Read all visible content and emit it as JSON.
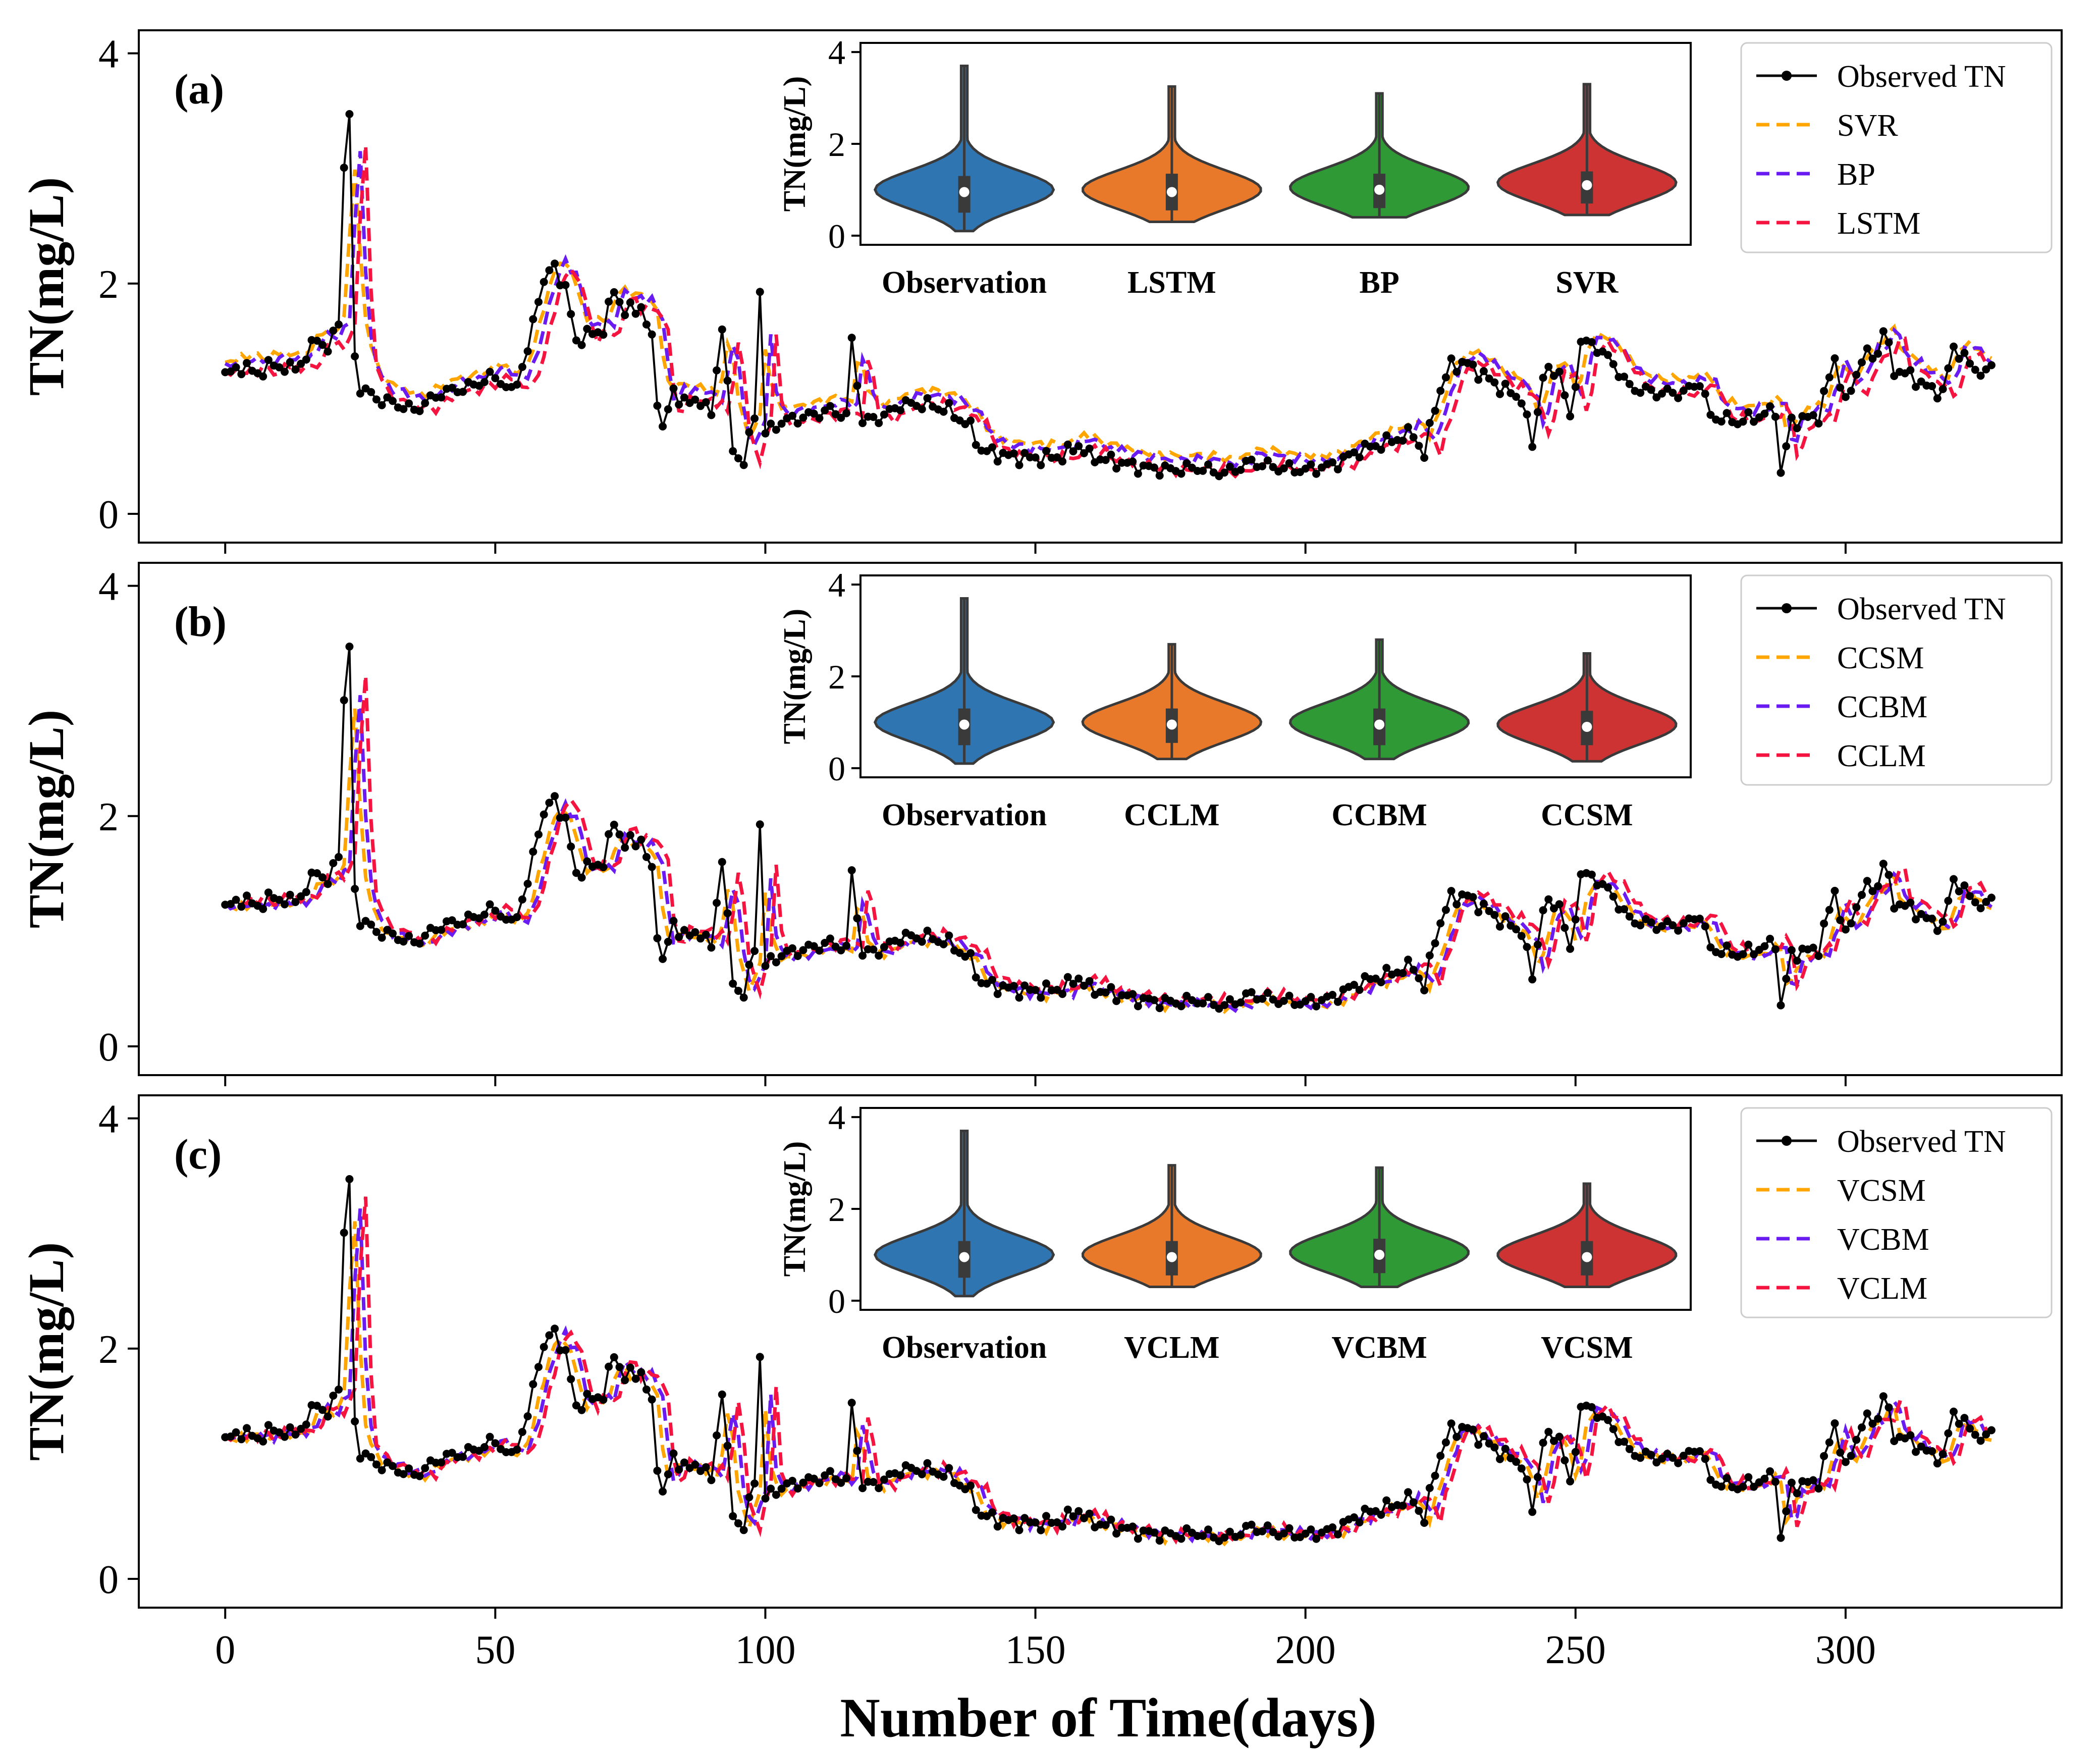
{
  "figure": {
    "xlabel": "Number of Time(days)",
    "ylabel": "TN(mg/L)",
    "xticks": [
      0,
      50,
      100,
      150,
      200,
      250,
      300
    ],
    "yticks": [
      0,
      2,
      4
    ],
    "colors": {
      "observed": "#000000",
      "orange": "#FFA500",
      "purple": "#6A1BF2",
      "red": "#F5133F",
      "violin_blue": "#2E75B1",
      "violin_orange": "#E8792A",
      "violin_green": "#2F9A35",
      "violin_red": "#CD3333"
    }
  },
  "chart_data": [
    {
      "type": "line",
      "panel_label": "(a)",
      "xlabel": "",
      "ylabel": "TN(mg/L)",
      "xlim": [
        -16,
        340
      ],
      "ylim": [
        -0.25,
        4.2
      ],
      "legend": {
        "placement": "top-right",
        "entries": [
          "Observed TN",
          "SVR",
          "BP",
          "LSTM"
        ]
      },
      "series": [
        {
          "name": "Observed TN",
          "style": "solid-with-dots",
          "color": "#000000"
        },
        {
          "name": "SVR",
          "style": "dashed",
          "color": "#FFA500",
          "bias": 0.12,
          "smooth": 0.5
        },
        {
          "name": "BP",
          "style": "dashed",
          "color": "#6A1BF2",
          "bias": 0.08,
          "smooth": 0.4
        },
        {
          "name": "LSTM",
          "style": "dashed",
          "color": "#F5133F",
          "bias": 0.0,
          "smooth": 0.3
        }
      ],
      "inset": {
        "type": "violin",
        "ylabel": "TN(mg/L)",
        "yticks": [
          0,
          2,
          4
        ],
        "ylim": [
          -0.2,
          4.2
        ],
        "categories": [
          "Observation",
          "LSTM",
          "BP",
          "SVR"
        ],
        "colors": [
          "#2E75B1",
          "#E8792A",
          "#2F9A35",
          "#CD3333"
        ],
        "medians": [
          0.95,
          0.95,
          1.0,
          1.1
        ],
        "q1": [
          0.5,
          0.55,
          0.6,
          0.7
        ],
        "q3": [
          1.3,
          1.35,
          1.35,
          1.4
        ],
        "min": [
          0.1,
          0.3,
          0.4,
          0.45
        ],
        "max": [
          3.7,
          3.25,
          3.1,
          3.3
        ]
      }
    },
    {
      "type": "line",
      "panel_label": "(b)",
      "xlabel": "",
      "ylabel": "TN(mg/L)",
      "xlim": [
        -16,
        340
      ],
      "ylim": [
        -0.25,
        4.2
      ],
      "legend": {
        "placement": "top-right",
        "entries": [
          "Observed TN",
          "CCSM",
          "CCBM",
          "CCLM"
        ]
      },
      "series": [
        {
          "name": "Observed TN",
          "style": "solid-with-dots",
          "color": "#000000"
        },
        {
          "name": "CCSM",
          "style": "dashed",
          "color": "#FFA500",
          "bias": -0.03,
          "smooth": 0.45
        },
        {
          "name": "CCBM",
          "style": "dashed",
          "color": "#6A1BF2",
          "bias": -0.02,
          "smooth": 0.4
        },
        {
          "name": "CCLM",
          "style": "dashed",
          "color": "#F5133F",
          "bias": 0.02,
          "smooth": 0.3
        }
      ],
      "inset": {
        "type": "violin",
        "ylabel": "TN(mg/L)",
        "yticks": [
          0,
          2,
          4
        ],
        "ylim": [
          -0.2,
          4.2
        ],
        "categories": [
          "Observation",
          "CCLM",
          "CCBM",
          "CCSM"
        ],
        "colors": [
          "#2E75B1",
          "#E8792A",
          "#2F9A35",
          "#CD3333"
        ],
        "medians": [
          0.95,
          0.95,
          0.95,
          0.9
        ],
        "q1": [
          0.5,
          0.55,
          0.5,
          0.5
        ],
        "q3": [
          1.3,
          1.3,
          1.3,
          1.25
        ],
        "min": [
          0.1,
          0.2,
          0.2,
          0.15
        ],
        "max": [
          3.7,
          2.7,
          2.8,
          2.5
        ]
      }
    },
    {
      "type": "line",
      "panel_label": "(c)",
      "xlabel": "Number of Time(days)",
      "ylabel": "TN(mg/L)",
      "xlim": [
        -16,
        340
      ],
      "ylim": [
        -0.25,
        4.2
      ],
      "legend": {
        "placement": "top-right",
        "entries": [
          "Observed TN",
          "VCSM",
          "VCBM",
          "VCLM"
        ]
      },
      "series": [
        {
          "name": "Observed TN",
          "style": "solid-with-dots",
          "color": "#000000"
        },
        {
          "name": "VCSM",
          "style": "dashed",
          "color": "#FFA500",
          "bias": -0.02,
          "smooth": 0.35
        },
        {
          "name": "VCBM",
          "style": "dashed",
          "color": "#6A1BF2",
          "bias": 0.0,
          "smooth": 0.3
        },
        {
          "name": "VCLM",
          "style": "dashed",
          "color": "#F5133F",
          "bias": 0.0,
          "smooth": 0.2
        }
      ],
      "inset": {
        "type": "violin",
        "ylabel": "TN(mg/L)",
        "yticks": [
          0,
          2,
          4
        ],
        "ylim": [
          -0.2,
          4.2
        ],
        "categories": [
          "Observation",
          "VCLM",
          "VCBM",
          "VCSM"
        ],
        "colors": [
          "#2E75B1",
          "#E8792A",
          "#2F9A35",
          "#CD3333"
        ],
        "medians": [
          0.95,
          0.95,
          1.0,
          0.95
        ],
        "q1": [
          0.5,
          0.55,
          0.6,
          0.55
        ],
        "q3": [
          1.3,
          1.3,
          1.35,
          1.3
        ],
        "min": [
          0.1,
          0.3,
          0.3,
          0.3
        ],
        "max": [
          3.7,
          2.95,
          2.9,
          2.55
        ]
      }
    }
  ],
  "observed_keypoints": [
    [
      0,
      1.2
    ],
    [
      3,
      1.28
    ],
    [
      6,
      1.22
    ],
    [
      9,
      1.3
    ],
    [
      12,
      1.25
    ],
    [
      15,
      1.35
    ],
    [
      17,
      1.55
    ],
    [
      19,
      1.4
    ],
    [
      21,
      1.7
    ],
    [
      22,
      3.0
    ],
    [
      23,
      3.45
    ],
    [
      24,
      1.35
    ],
    [
      25,
      1.1
    ],
    [
      28,
      1.0
    ],
    [
      32,
      0.95
    ],
    [
      35,
      0.9
    ],
    [
      40,
      1.05
    ],
    [
      45,
      1.1
    ],
    [
      50,
      1.2
    ],
    [
      53,
      1.05
    ],
    [
      56,
      1.4
    ],
    [
      58,
      1.9
    ],
    [
      60,
      2.1
    ],
    [
      61,
      2.15
    ],
    [
      63,
      1.95
    ],
    [
      65,
      1.5
    ],
    [
      67,
      1.55
    ],
    [
      70,
      1.6
    ],
    [
      72,
      1.95
    ],
    [
      74,
      1.75
    ],
    [
      77,
      1.8
    ],
    [
      79,
      1.5
    ],
    [
      80,
      1.0
    ],
    [
      81,
      0.75
    ],
    [
      83,
      1.05
    ],
    [
      86,
      0.95
    ],
    [
      88,
      1.0
    ],
    [
      90,
      0.85
    ],
    [
      92,
      1.65
    ],
    [
      94,
      0.55
    ],
    [
      96,
      0.45
    ],
    [
      98,
      0.85
    ],
    [
      99,
      1.95
    ],
    [
      100,
      0.7
    ],
    [
      103,
      0.8
    ],
    [
      108,
      0.85
    ],
    [
      112,
      0.9
    ],
    [
      115,
      0.85
    ],
    [
      116,
      1.5
    ],
    [
      118,
      0.8
    ],
    [
      122,
      0.85
    ],
    [
      125,
      0.95
    ],
    [
      130,
      0.95
    ],
    [
      134,
      0.9
    ],
    [
      138,
      0.75
    ],
    [
      140,
      0.55
    ],
    [
      145,
      0.5
    ],
    [
      150,
      0.48
    ],
    [
      155,
      0.5
    ],
    [
      158,
      0.6
    ],
    [
      160,
      0.5
    ],
    [
      165,
      0.45
    ],
    [
      170,
      0.4
    ],
    [
      175,
      0.38
    ],
    [
      180,
      0.4
    ],
    [
      185,
      0.35
    ],
    [
      190,
      0.45
    ],
    [
      195,
      0.4
    ],
    [
      200,
      0.38
    ],
    [
      205,
      0.42
    ],
    [
      210,
      0.55
    ],
    [
      215,
      0.62
    ],
    [
      220,
      0.7
    ],
    [
      222,
      0.5
    ],
    [
      224,
      0.95
    ],
    [
      227,
      1.3
    ],
    [
      230,
      1.3
    ],
    [
      233,
      1.2
    ],
    [
      236,
      1.1
    ],
    [
      240,
      1.0
    ],
    [
      242,
      0.6
    ],
    [
      244,
      1.2
    ],
    [
      247,
      1.25
    ],
    [
      249,
      0.8
    ],
    [
      251,
      1.5
    ],
    [
      254,
      1.45
    ],
    [
      257,
      1.3
    ],
    [
      260,
      1.1
    ],
    [
      265,
      1.05
    ],
    [
      270,
      1.05
    ],
    [
      273,
      1.15
    ],
    [
      275,
      0.85
    ],
    [
      280,
      0.8
    ],
    [
      284,
      0.85
    ],
    [
      287,
      0.9
    ],
    [
      288,
      0.35
    ],
    [
      290,
      0.8
    ],
    [
      295,
      0.85
    ],
    [
      298,
      1.35
    ],
    [
      300,
      0.95
    ],
    [
      303,
      1.35
    ],
    [
      306,
      1.4
    ],
    [
      307,
      1.6
    ],
    [
      309,
      1.25
    ],
    [
      312,
      1.2
    ],
    [
      315,
      1.1
    ],
    [
      318,
      1.05
    ],
    [
      320,
      1.45
    ],
    [
      323,
      1.3
    ],
    [
      326,
      1.2
    ],
    [
      327,
      1.3
    ]
  ]
}
